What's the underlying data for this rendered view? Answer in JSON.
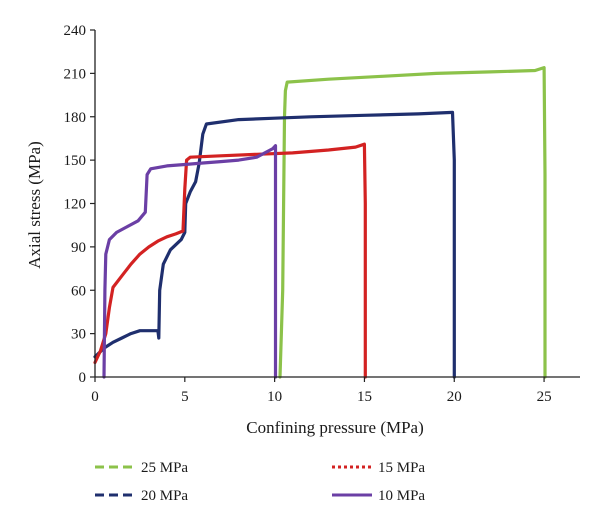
{
  "chart_data": {
    "type": "line",
    "xlabel": "Confining pressure (MPa)",
    "ylabel": "Axial stress (MPa)",
    "xlim": [
      0,
      27
    ],
    "ylim": [
      0,
      240
    ],
    "xticks": [
      0,
      5,
      10,
      15,
      20,
      25
    ],
    "yticks": [
      0,
      30,
      60,
      90,
      120,
      150,
      180,
      210,
      240
    ],
    "legend_position": "bottom",
    "series": [
      {
        "name": "25 MPa",
        "color": "#8cc24a",
        "dash": "dashed",
        "points": [
          [
            10.3,
            0
          ],
          [
            10.45,
            60
          ],
          [
            10.5,
            120
          ],
          [
            10.55,
            180
          ],
          [
            10.6,
            198
          ],
          [
            10.7,
            204
          ],
          [
            13,
            206
          ],
          [
            16,
            208
          ],
          [
            19,
            210
          ],
          [
            22,
            211
          ],
          [
            24.5,
            212
          ],
          [
            25,
            214
          ],
          [
            25.05,
            140
          ],
          [
            25.05,
            0
          ]
        ]
      },
      {
        "name": "20 MPa",
        "color": "#1f2f6e",
        "dash": "dashed",
        "points": [
          [
            0,
            14
          ],
          [
            0.5,
            20
          ],
          [
            1,
            24
          ],
          [
            1.5,
            27
          ],
          [
            2,
            30
          ],
          [
            2.5,
            32
          ],
          [
            3,
            32
          ],
          [
            3.5,
            32
          ],
          [
            3.55,
            27
          ],
          [
            3.6,
            60
          ],
          [
            3.8,
            78
          ],
          [
            4.2,
            88
          ],
          [
            4.8,
            95
          ],
          [
            5,
            100
          ],
          [
            5.05,
            120
          ],
          [
            5.3,
            128
          ],
          [
            5.6,
            135
          ],
          [
            5.8,
            148
          ],
          [
            6.0,
            168
          ],
          [
            6.2,
            175
          ],
          [
            8,
            178
          ],
          [
            10,
            179
          ],
          [
            12,
            180
          ],
          [
            15,
            181
          ],
          [
            18,
            182
          ],
          [
            19.9,
            183
          ],
          [
            20,
            150
          ],
          [
            20,
            0
          ]
        ]
      },
      {
        "name": "15 MPa",
        "color": "#d32222",
        "dash": "dotted",
        "points": [
          [
            0,
            10
          ],
          [
            0.3,
            18
          ],
          [
            0.6,
            30
          ],
          [
            0.8,
            48
          ],
          [
            1.0,
            62
          ],
          [
            1.5,
            70
          ],
          [
            2,
            78
          ],
          [
            2.5,
            85
          ],
          [
            3,
            90
          ],
          [
            3.5,
            94
          ],
          [
            4,
            97
          ],
          [
            4.5,
            99
          ],
          [
            4.9,
            101
          ],
          [
            5.0,
            130
          ],
          [
            5.1,
            150
          ],
          [
            5.3,
            152
          ],
          [
            7,
            153
          ],
          [
            9,
            154
          ],
          [
            11,
            155
          ],
          [
            13,
            157
          ],
          [
            14.5,
            159
          ],
          [
            15,
            161
          ],
          [
            15.05,
            120
          ],
          [
            15.05,
            0
          ]
        ]
      },
      {
        "name": "10 MPa",
        "color": "#6b3fa5",
        "dash": "solid",
        "points": [
          [
            0.5,
            0
          ],
          [
            0.55,
            60
          ],
          [
            0.6,
            85
          ],
          [
            0.8,
            95
          ],
          [
            1.2,
            100
          ],
          [
            1.8,
            104
          ],
          [
            2.4,
            108
          ],
          [
            2.8,
            114
          ],
          [
            2.9,
            140
          ],
          [
            3.1,
            144
          ],
          [
            4,
            146
          ],
          [
            5,
            147
          ],
          [
            6,
            148
          ],
          [
            7,
            149
          ],
          [
            8,
            150
          ],
          [
            9,
            152
          ],
          [
            9.9,
            158
          ],
          [
            10.05,
            160
          ],
          [
            10.05,
            0
          ]
        ]
      }
    ],
    "legend": {
      "items": [
        {
          "label": "25 MPa",
          "color": "#8cc24a",
          "dash": "dashed"
        },
        {
          "label": "15 MPa",
          "color": "#d32222",
          "dash": "dotted"
        },
        {
          "label": "20 MPa",
          "color": "#1f2f6e",
          "dash": "dashed"
        },
        {
          "label": "10 MPa",
          "color": "#6b3fa5",
          "dash": "solid"
        }
      ]
    }
  }
}
